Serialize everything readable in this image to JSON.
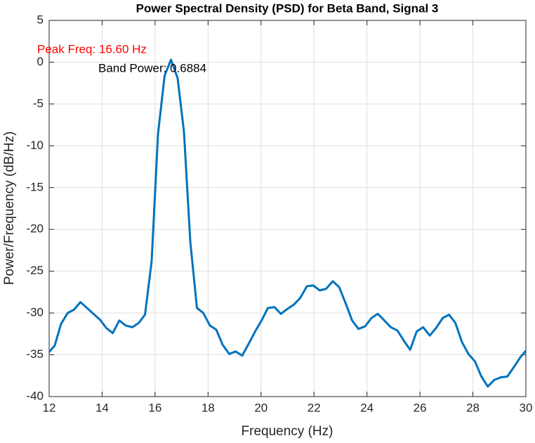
{
  "chart_data": {
    "type": "line",
    "title": "Power Spectral Density (PSD) for Beta Band, Signal 3",
    "x_label": "Frequency (Hz)",
    "y_label": "Power/Frequency (dB/Hz)",
    "annotations": [
      "Peak Freq: 16.60 Hz",
      "Band Power: 0.6884"
    ],
    "annotation_colors": [
      "#ff0000",
      "#000000"
    ],
    "color": "#0072bd",
    "grid": true,
    "xlim": [
      12,
      30
    ],
    "xticks": [
      12,
      14,
      16,
      18,
      20,
      22,
      24,
      26,
      28,
      30
    ],
    "ylim": [
      -40,
      5
    ],
    "yticks": [
      -40,
      -35,
      -30,
      -25,
      -20,
      -15,
      -10,
      -5,
      0,
      5
    ],
    "x": [
      11.96,
      12.21,
      12.45,
      12.7,
      12.94,
      13.18,
      13.43,
      13.67,
      13.92,
      14.16,
      14.4,
      14.65,
      14.89,
      15.14,
      15.38,
      15.62,
      15.87,
      16.11,
      16.36,
      16.6,
      16.85,
      17.09,
      17.33,
      17.58,
      17.82,
      18.07,
      18.31,
      18.55,
      18.8,
      19.04,
      19.29,
      19.53,
      19.78,
      20.02,
      20.26,
      20.51,
      20.75,
      21.0,
      21.24,
      21.48,
      21.73,
      21.97,
      22.22,
      22.46,
      22.71,
      22.95,
      23.19,
      23.44,
      23.68,
      23.93,
      24.17,
      24.41,
      24.66,
      24.9,
      25.15,
      25.39,
      25.63,
      25.88,
      26.12,
      26.37,
      26.61,
      26.86,
      27.1,
      27.34,
      27.59,
      27.83,
      28.08,
      28.32,
      28.56,
      28.81,
      29.05,
      29.3,
      29.54,
      29.79,
      30.03
    ],
    "values": [
      -34.8,
      -33.9,
      -31.3,
      -30.0,
      -29.6,
      -28.7,
      -29.4,
      -30.1,
      -30.8,
      -31.8,
      -32.4,
      -30.9,
      -31.5,
      -31.7,
      -31.2,
      -30.2,
      -23.8,
      -8.6,
      -1.6,
      0.3,
      -1.9,
      -8.3,
      -21.5,
      -29.4,
      -30.0,
      -31.5,
      -32.0,
      -33.8,
      -34.9,
      -34.6,
      -35.1,
      -33.7,
      -32.2,
      -30.9,
      -29.4,
      -29.3,
      -30.1,
      -29.5,
      -29.0,
      -28.2,
      -26.8,
      -26.7,
      -27.3,
      -27.1,
      -26.2,
      -26.9,
      -28.8,
      -30.9,
      -31.9,
      -31.6,
      -30.6,
      -30.1,
      -30.9,
      -31.7,
      -32.1,
      -33.3,
      -34.4,
      -32.2,
      -31.7,
      -32.7,
      -31.8,
      -30.6,
      -30.2,
      -31.2,
      -33.5,
      -34.9,
      -35.8,
      -37.6,
      -38.8,
      -38.0,
      -37.7,
      -37.6,
      -36.5,
      -35.3,
      -34.4
    ]
  }
}
